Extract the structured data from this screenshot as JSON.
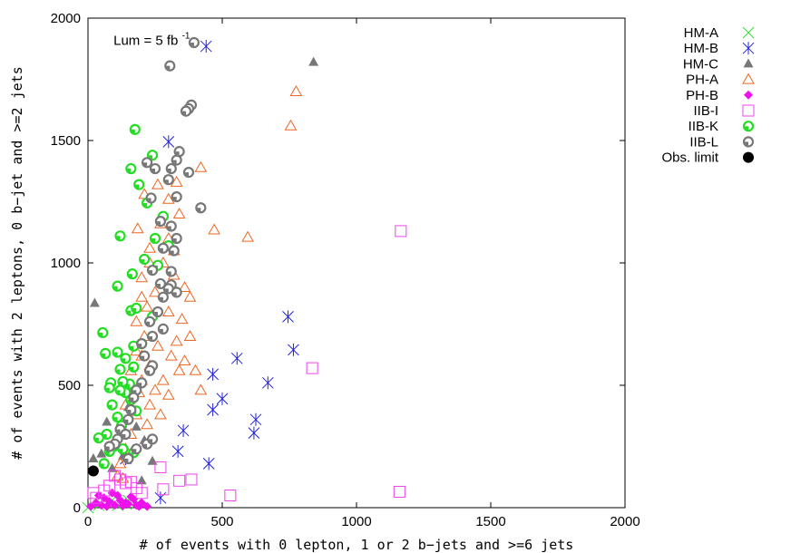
{
  "chart_data": {
    "type": "scatter",
    "xlabel": "# of events with 0 lepton, 1 or 2 b−jets and >=6 jets",
    "ylabel": "# of events with 2 leptons, 0 b−jet and >=2 jets",
    "xlim": [
      0,
      2000
    ],
    "ylim": [
      0,
      2000
    ],
    "xticks": [
      0,
      500,
      1000,
      1500,
      2000
    ],
    "yticks": [
      0,
      500,
      1000,
      1500,
      2000
    ],
    "grid": false,
    "legend_position": "outside-top-right",
    "annotation": {
      "text": "Lum = 5 fb",
      "superscript": "-1",
      "x": 95,
      "y": 1890
    },
    "series": [
      {
        "name": "HM-A",
        "marker": "x",
        "color": "#33dd33",
        "points": [
          [
            0,
            0
          ],
          [
            40,
            10
          ],
          [
            80,
            20
          ],
          [
            110,
            10
          ],
          [
            150,
            30
          ],
          [
            180,
            15
          ]
        ]
      },
      {
        "name": "HM-B",
        "marker": "star",
        "color": "#2222dd",
        "points": [
          [
            440,
            1885
          ],
          [
            300,
            1495
          ],
          [
            745,
            780
          ],
          [
            765,
            645
          ],
          [
            555,
            610
          ],
          [
            670,
            510
          ],
          [
            465,
            545
          ],
          [
            500,
            445
          ],
          [
            465,
            400
          ],
          [
            625,
            360
          ],
          [
            618,
            305
          ],
          [
            355,
            315
          ],
          [
            335,
            230
          ],
          [
            450,
            180
          ],
          [
            270,
            40
          ],
          [
            140,
            200
          ]
        ]
      },
      {
        "name": "HM-C",
        "marker": "triangle-filled",
        "color": "#777777",
        "points": [
          [
            840,
            1820
          ],
          [
            25,
            835
          ],
          [
            70,
            350
          ],
          [
            110,
            370
          ],
          [
            130,
            320
          ],
          [
            20,
            200
          ],
          [
            50,
            220
          ],
          [
            210,
            275
          ],
          [
            180,
            330
          ],
          [
            90,
            160
          ],
          [
            240,
            190
          ],
          [
            200,
            110
          ],
          [
            130,
            210
          ],
          [
            150,
            410
          ],
          [
            160,
            480
          ]
        ]
      },
      {
        "name": "PH-A",
        "marker": "triangle-open",
        "color": "#ee6622",
        "points": [
          [
            775,
            1700
          ],
          [
            755,
            1560
          ],
          [
            330,
            1330
          ],
          [
            420,
            1390
          ],
          [
            470,
            1135
          ],
          [
            595,
            1105
          ],
          [
            185,
            1140
          ],
          [
            210,
            1280
          ],
          [
            260,
            1320
          ],
          [
            300,
            1260
          ],
          [
            340,
            1200
          ],
          [
            230,
            1060
          ],
          [
            280,
            1000
          ],
          [
            320,
            950
          ],
          [
            360,
            900
          ],
          [
            200,
            940
          ],
          [
            250,
            880
          ],
          [
            220,
            820
          ],
          [
            300,
            800
          ],
          [
            350,
            770
          ],
          [
            380,
            700
          ],
          [
            180,
            760
          ],
          [
            210,
            700
          ],
          [
            260,
            660
          ],
          [
            310,
            620
          ],
          [
            340,
            560
          ],
          [
            200,
            620
          ],
          [
            230,
            580
          ],
          [
            280,
            520
          ],
          [
            300,
            460
          ],
          [
            200,
            520
          ],
          [
            250,
            480
          ],
          [
            160,
            560
          ],
          [
            190,
            470
          ],
          [
            230,
            420
          ],
          [
            270,
            380
          ],
          [
            140,
            420
          ],
          [
            180,
            380
          ],
          [
            220,
            340
          ],
          [
            160,
            300
          ],
          [
            140,
            240
          ],
          [
            120,
            180
          ],
          [
            110,
            130
          ],
          [
            130,
            120
          ],
          [
            180,
            640
          ],
          [
            330,
            680
          ],
          [
            360,
            600
          ],
          [
            400,
            560
          ],
          [
            420,
            480
          ],
          [
            300,
            1100
          ],
          [
            270,
            1160
          ],
          [
            320,
            1050
          ],
          [
            230,
            1000
          ],
          [
            380,
            860
          ],
          [
            200,
            860
          ]
        ]
      },
      {
        "name": "PH-B",
        "marker": "diamond-filled",
        "color": "#ee11ee",
        "points": [
          [
            10,
            5
          ],
          [
            30,
            20
          ],
          [
            50,
            10
          ],
          [
            60,
            40
          ],
          [
            80,
            25
          ],
          [
            90,
            60
          ],
          [
            100,
            10
          ],
          [
            120,
            30
          ],
          [
            140,
            20
          ],
          [
            160,
            45
          ],
          [
            180,
            10
          ],
          [
            200,
            20
          ],
          [
            220,
            5
          ],
          [
            70,
            5
          ],
          [
            110,
            50
          ],
          [
            130,
            8
          ],
          [
            150,
            15
          ],
          [
            170,
            35
          ],
          [
            190,
            5
          ],
          [
            40,
            50
          ]
        ]
      },
      {
        "name": "IIB-I",
        "marker": "square-open",
        "color": "#ee44ee",
        "points": [
          [
            1165,
            1130
          ],
          [
            835,
            570
          ],
          [
            1160,
            65
          ],
          [
            530,
            50
          ],
          [
            385,
            115
          ],
          [
            340,
            110
          ],
          [
            270,
            165
          ],
          [
            280,
            75
          ],
          [
            100,
            130
          ],
          [
            120,
            115
          ],
          [
            140,
            100
          ],
          [
            160,
            105
          ],
          [
            180,
            80
          ],
          [
            60,
            70
          ],
          [
            80,
            90
          ],
          [
            30,
            40
          ],
          [
            20,
            60
          ],
          [
            200,
            60
          ]
        ]
      },
      {
        "name": "IIB-K",
        "marker": "circle-green",
        "color": "#22dd22",
        "points": [
          [
            175,
            1545
          ],
          [
            240,
            1440
          ],
          [
            160,
            1385
          ],
          [
            190,
            1320
          ],
          [
            220,
            1245
          ],
          [
            120,
            1110
          ],
          [
            280,
            1190
          ],
          [
            210,
            1015
          ],
          [
            250,
            1100
          ],
          [
            165,
            955
          ],
          [
            300,
            1070
          ],
          [
            260,
            990
          ],
          [
            110,
            905
          ],
          [
            160,
            805
          ],
          [
            180,
            815
          ],
          [
            240,
            780
          ],
          [
            200,
            670
          ],
          [
            170,
            660
          ],
          [
            140,
            610
          ],
          [
            55,
            715
          ],
          [
            65,
            630
          ],
          [
            110,
            635
          ],
          [
            170,
            575
          ],
          [
            120,
            565
          ],
          [
            85,
            510
          ],
          [
            155,
            505
          ],
          [
            130,
            515
          ],
          [
            80,
            490
          ],
          [
            140,
            470
          ],
          [
            120,
            480
          ],
          [
            90,
            420
          ],
          [
            160,
            440
          ],
          [
            180,
            395
          ],
          [
            110,
            370
          ],
          [
            125,
            335
          ],
          [
            70,
            300
          ],
          [
            40,
            285
          ],
          [
            95,
            250
          ],
          [
            80,
            230
          ],
          [
            60,
            180
          ],
          [
            170,
            225
          ],
          [
            130,
            240
          ]
        ]
      },
      {
        "name": "IIB-L",
        "marker": "circle-gray",
        "color": "#777777",
        "points": [
          [
            395,
            1900
          ],
          [
            305,
            1805
          ],
          [
            385,
            1645
          ],
          [
            375,
            1630
          ],
          [
            365,
            1620
          ],
          [
            340,
            1455
          ],
          [
            330,
            1420
          ],
          [
            220,
            1410
          ],
          [
            250,
            1385
          ],
          [
            310,
            1385
          ],
          [
            375,
            1370
          ],
          [
            300,
            1340
          ],
          [
            235,
            1265
          ],
          [
            330,
            1270
          ],
          [
            420,
            1225
          ],
          [
            270,
            1170
          ],
          [
            310,
            1150
          ],
          [
            330,
            1100
          ],
          [
            280,
            1060
          ],
          [
            320,
            1050
          ],
          [
            240,
            970
          ],
          [
            310,
            965
          ],
          [
            270,
            915
          ],
          [
            310,
            910
          ],
          [
            300,
            895
          ],
          [
            280,
            860
          ],
          [
            330,
            880
          ],
          [
            260,
            800
          ],
          [
            230,
            760
          ],
          [
            280,
            730
          ],
          [
            240,
            700
          ],
          [
            200,
            670
          ],
          [
            210,
            620
          ],
          [
            240,
            580
          ],
          [
            230,
            560
          ],
          [
            200,
            510
          ],
          [
            180,
            480
          ],
          [
            170,
            450
          ],
          [
            160,
            400
          ],
          [
            150,
            360
          ],
          [
            120,
            320
          ],
          [
            140,
            300
          ],
          [
            110,
            280
          ],
          [
            100,
            260
          ],
          [
            80,
            250
          ],
          [
            150,
            200
          ],
          [
            180,
            240
          ],
          [
            220,
            260
          ],
          [
            240,
            280
          ]
        ]
      },
      {
        "name": "Obs. limit",
        "marker": "circle-filled",
        "color": "#000000",
        "points": [
          [
            20,
            150
          ]
        ]
      }
    ]
  }
}
